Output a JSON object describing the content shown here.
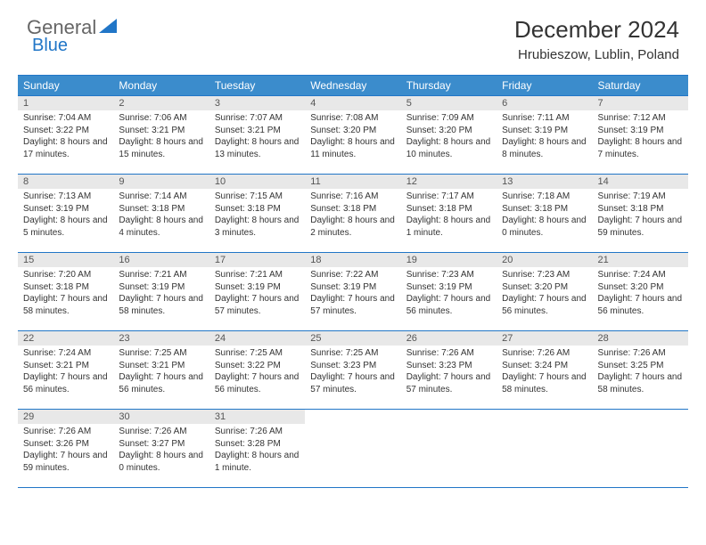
{
  "logo": {
    "text1": "General",
    "text2": "Blue"
  },
  "title": "December 2024",
  "location": "Hrubieszow, Lublin, Poland",
  "colors": {
    "header_bg": "#3b8ccc",
    "border": "#2176c7",
    "daynum_bg": "#e8e8e8",
    "logo_gray": "#666666",
    "logo_blue": "#2176c7"
  },
  "weekdays": [
    "Sunday",
    "Monday",
    "Tuesday",
    "Wednesday",
    "Thursday",
    "Friday",
    "Saturday"
  ],
  "weeks": [
    [
      {
        "n": "1",
        "sunrise": "7:04 AM",
        "sunset": "3:22 PM",
        "dl": "8 hours and 17 minutes."
      },
      {
        "n": "2",
        "sunrise": "7:06 AM",
        "sunset": "3:21 PM",
        "dl": "8 hours and 15 minutes."
      },
      {
        "n": "3",
        "sunrise": "7:07 AM",
        "sunset": "3:21 PM",
        "dl": "8 hours and 13 minutes."
      },
      {
        "n": "4",
        "sunrise": "7:08 AM",
        "sunset": "3:20 PM",
        "dl": "8 hours and 11 minutes."
      },
      {
        "n": "5",
        "sunrise": "7:09 AM",
        "sunset": "3:20 PM",
        "dl": "8 hours and 10 minutes."
      },
      {
        "n": "6",
        "sunrise": "7:11 AM",
        "sunset": "3:19 PM",
        "dl": "8 hours and 8 minutes."
      },
      {
        "n": "7",
        "sunrise": "7:12 AM",
        "sunset": "3:19 PM",
        "dl": "8 hours and 7 minutes."
      }
    ],
    [
      {
        "n": "8",
        "sunrise": "7:13 AM",
        "sunset": "3:19 PM",
        "dl": "8 hours and 5 minutes."
      },
      {
        "n": "9",
        "sunrise": "7:14 AM",
        "sunset": "3:18 PM",
        "dl": "8 hours and 4 minutes."
      },
      {
        "n": "10",
        "sunrise": "7:15 AM",
        "sunset": "3:18 PM",
        "dl": "8 hours and 3 minutes."
      },
      {
        "n": "11",
        "sunrise": "7:16 AM",
        "sunset": "3:18 PM",
        "dl": "8 hours and 2 minutes."
      },
      {
        "n": "12",
        "sunrise": "7:17 AM",
        "sunset": "3:18 PM",
        "dl": "8 hours and 1 minute."
      },
      {
        "n": "13",
        "sunrise": "7:18 AM",
        "sunset": "3:18 PM",
        "dl": "8 hours and 0 minutes."
      },
      {
        "n": "14",
        "sunrise": "7:19 AM",
        "sunset": "3:18 PM",
        "dl": "7 hours and 59 minutes."
      }
    ],
    [
      {
        "n": "15",
        "sunrise": "7:20 AM",
        "sunset": "3:18 PM",
        "dl": "7 hours and 58 minutes."
      },
      {
        "n": "16",
        "sunrise": "7:21 AM",
        "sunset": "3:19 PM",
        "dl": "7 hours and 58 minutes."
      },
      {
        "n": "17",
        "sunrise": "7:21 AM",
        "sunset": "3:19 PM",
        "dl": "7 hours and 57 minutes."
      },
      {
        "n": "18",
        "sunrise": "7:22 AM",
        "sunset": "3:19 PM",
        "dl": "7 hours and 57 minutes."
      },
      {
        "n": "19",
        "sunrise": "7:23 AM",
        "sunset": "3:19 PM",
        "dl": "7 hours and 56 minutes."
      },
      {
        "n": "20",
        "sunrise": "7:23 AM",
        "sunset": "3:20 PM",
        "dl": "7 hours and 56 minutes."
      },
      {
        "n": "21",
        "sunrise": "7:24 AM",
        "sunset": "3:20 PM",
        "dl": "7 hours and 56 minutes."
      }
    ],
    [
      {
        "n": "22",
        "sunrise": "7:24 AM",
        "sunset": "3:21 PM",
        "dl": "7 hours and 56 minutes."
      },
      {
        "n": "23",
        "sunrise": "7:25 AM",
        "sunset": "3:21 PM",
        "dl": "7 hours and 56 minutes."
      },
      {
        "n": "24",
        "sunrise": "7:25 AM",
        "sunset": "3:22 PM",
        "dl": "7 hours and 56 minutes."
      },
      {
        "n": "25",
        "sunrise": "7:25 AM",
        "sunset": "3:23 PM",
        "dl": "7 hours and 57 minutes."
      },
      {
        "n": "26",
        "sunrise": "7:26 AM",
        "sunset": "3:23 PM",
        "dl": "7 hours and 57 minutes."
      },
      {
        "n": "27",
        "sunrise": "7:26 AM",
        "sunset": "3:24 PM",
        "dl": "7 hours and 58 minutes."
      },
      {
        "n": "28",
        "sunrise": "7:26 AM",
        "sunset": "3:25 PM",
        "dl": "7 hours and 58 minutes."
      }
    ],
    [
      {
        "n": "29",
        "sunrise": "7:26 AM",
        "sunset": "3:26 PM",
        "dl": "7 hours and 59 minutes."
      },
      {
        "n": "30",
        "sunrise": "7:26 AM",
        "sunset": "3:27 PM",
        "dl": "8 hours and 0 minutes."
      },
      {
        "n": "31",
        "sunrise": "7:26 AM",
        "sunset": "3:28 PM",
        "dl": "8 hours and 1 minute."
      },
      null,
      null,
      null,
      null
    ]
  ]
}
